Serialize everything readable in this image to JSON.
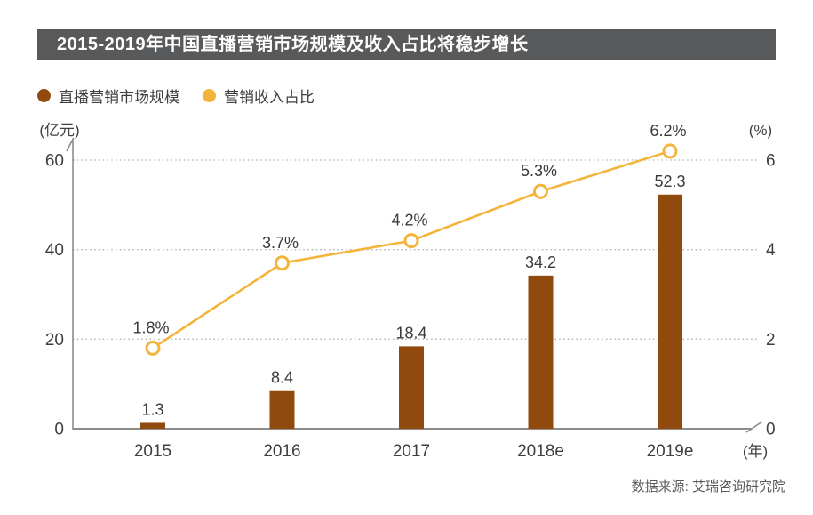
{
  "title_bar": {
    "text": "2015-2019年中国直播营销市场规模及收入占比将稳步增长"
  },
  "legend": {
    "items": [
      {
        "label": "直播营销市场规模",
        "color": "#914a0d"
      },
      {
        "label": "营销收入占比",
        "color": "#f4b43a"
      }
    ]
  },
  "source": {
    "text": "数据来源: 艾瑞咨询研究院"
  },
  "colors": {
    "title_bar_bg": "#58595b",
    "title_text": "#ffffff",
    "bar": "#914a0d",
    "line": "#f4b43a",
    "marker_fill": "#ffffff",
    "text": "#3f3f3f",
    "axis": "#8c8c8c",
    "grid": "#b3b3b3",
    "source_text": "#595757",
    "background": "#ffffff"
  },
  "chart_data": {
    "type": "combo-bar-line",
    "title": "2015-2019年中国直播营销市场规模及收入占比将稳步增长",
    "categories": [
      "2015",
      "2016",
      "2017",
      "2018e",
      "2019e"
    ],
    "series": [
      {
        "name": "直播营销市场规模",
        "type": "bar",
        "axis": "left",
        "unit": "亿元",
        "color": "#914a0d",
        "values": [
          1.3,
          8.4,
          18.4,
          34.2,
          52.3
        ],
        "value_labels": [
          "1.3",
          "8.4",
          "18.4",
          "34.2",
          "52.3"
        ]
      },
      {
        "name": "营销收入占比",
        "type": "line",
        "axis": "right",
        "unit": "%",
        "color": "#f4b43a",
        "values": [
          1.8,
          3.7,
          4.2,
          5.3,
          6.2
        ],
        "value_labels": [
          "1.8%",
          "3.7%",
          "4.2%",
          "5.3%",
          "6.2%"
        ]
      }
    ],
    "left_axis": {
      "unit_label": "(亿元)",
      "ticks": [
        0,
        20,
        40,
        60
      ],
      "range": [
        0,
        64
      ]
    },
    "right_axis": {
      "unit_label": "(%)",
      "ticks": [
        0,
        2,
        4,
        6
      ],
      "range": [
        0,
        6.4
      ]
    },
    "x_axis": {
      "unit_label": "(年)",
      "tick_labels": [
        "2015",
        "2016",
        "2017",
        "2018e",
        "2019e"
      ]
    },
    "grid": {
      "horizontal": "dotted"
    },
    "legend_position": "top-left",
    "source": "数据来源: 艾瑞咨询研究院"
  }
}
